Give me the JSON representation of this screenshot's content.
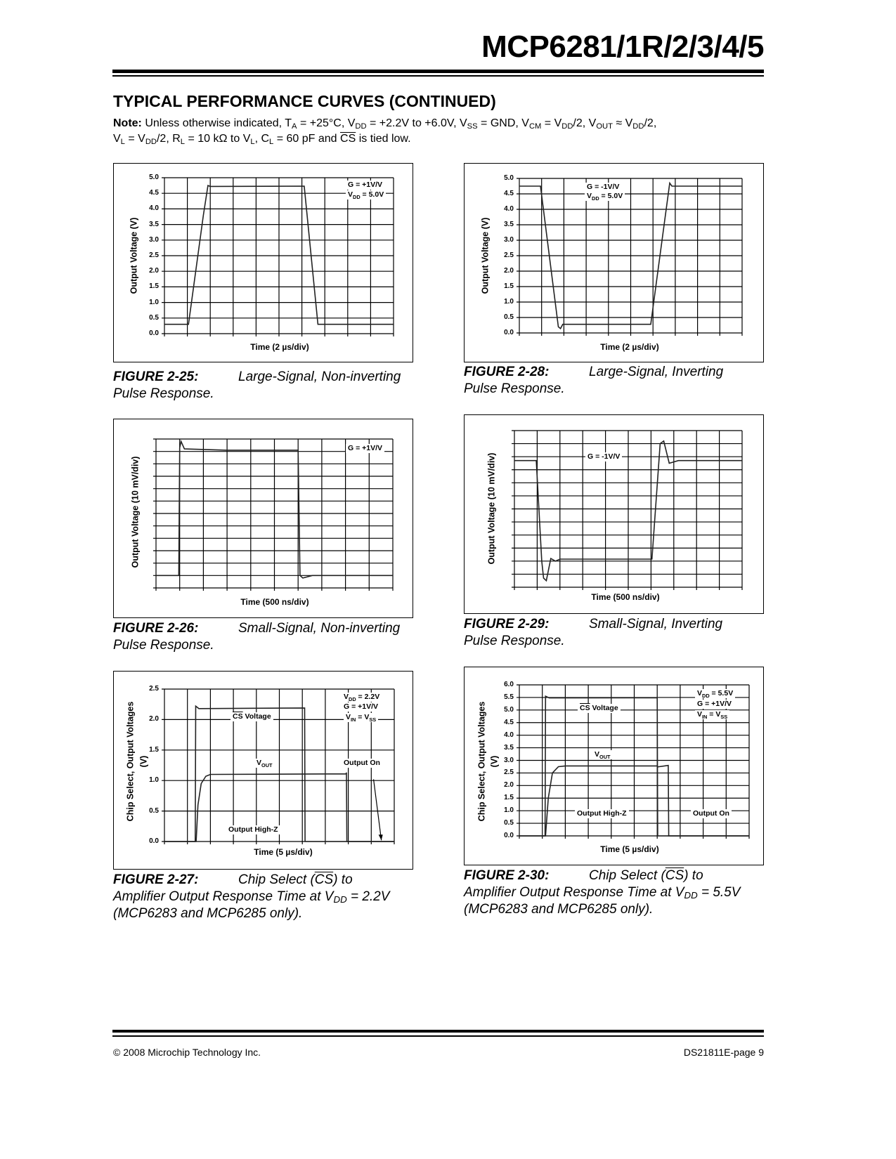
{
  "header": {
    "title": "MCP6281/1R/2/3/4/5"
  },
  "section_title": "TYPICAL PERFORMANCE CURVES (CONTINUED)",
  "note": {
    "line1": [
      {
        "b": "Note:"
      },
      {
        "t": " Unless otherwise indicated, T"
      },
      {
        "sub": "A"
      },
      {
        "t": " = +25°C, V"
      },
      {
        "sub": "DD"
      },
      {
        "t": " = +2.2V to +6.0V, V"
      },
      {
        "sub": "SS"
      },
      {
        "t": " = GND, V"
      },
      {
        "sub": "CM"
      },
      {
        "t": " = V"
      },
      {
        "sub": "DD"
      },
      {
        "t": "/2, V"
      },
      {
        "sub": "OUT"
      },
      {
        "t": " ≈ V"
      },
      {
        "sub": "DD"
      },
      {
        "t": "/2,"
      }
    ],
    "line2": [
      {
        "t": "V"
      },
      {
        "sub": "L"
      },
      {
        "t": " = V"
      },
      {
        "sub": "DD"
      },
      {
        "t": "/2, R"
      },
      {
        "sub": "L"
      },
      {
        "t": " = 10 kΩ to V"
      },
      {
        "sub": "L"
      },
      {
        "t": ", C"
      },
      {
        "sub": "L"
      },
      {
        "t": " = 60 pF and "
      },
      {
        "over": "CS"
      },
      {
        "t": " is tied low."
      }
    ]
  },
  "chart_data": [
    {
      "id": "fig-2-25",
      "type": "line",
      "xlabel": "Time (2 µs/div)",
      "ylabel": [
        "Output Voltage (V)"
      ],
      "xlim": [
        0,
        20
      ],
      "x_unit": "µs",
      "x_divisions": 10,
      "ylim": [
        0,
        5
      ],
      "y_divisions": 10,
      "yticks": [
        "0.0",
        "0.5",
        "1.0",
        "1.5",
        "2.0",
        "2.5",
        "3.0",
        "3.5",
        "4.0",
        "4.5",
        "5.0"
      ],
      "grid": true,
      "series": [
        {
          "points": [
            [
              0,
              0.3
            ],
            [
              2.1,
              0.3
            ],
            [
              3.4,
              3.8
            ],
            [
              3.8,
              4.75
            ],
            [
              4.0,
              4.72
            ],
            [
              12.2,
              4.73
            ],
            [
              13.4,
              0.3
            ],
            [
              20,
              0.3
            ]
          ]
        }
      ],
      "annotations": [
        [
          {
            "t": "G = +1V/V"
          }
        ],
        [
          {
            "t": "V"
          },
          {
            "sub": "DD"
          },
          {
            "t": " = 5.0V"
          }
        ]
      ]
    },
    {
      "id": "fig-2-28",
      "type": "line",
      "xlabel": "Time (2 µs/div)",
      "ylabel": [
        "Output Voltage (V)"
      ],
      "xlim": [
        0,
        20
      ],
      "x_unit": "µs",
      "x_divisions": 10,
      "ylim": [
        0,
        5
      ],
      "y_divisions": 10,
      "yticks": [
        "0.0",
        "0.5",
        "1.0",
        "1.5",
        "2.0",
        "2.5",
        "3.0",
        "3.5",
        "4.0",
        "4.5",
        "5.0"
      ],
      "grid": true,
      "series": [
        {
          "points": [
            [
              0,
              4.75
            ],
            [
              1.9,
              4.75
            ],
            [
              3.5,
              0.2
            ],
            [
              3.7,
              0.14
            ],
            [
              3.9,
              0.28
            ],
            [
              11.8,
              0.28
            ],
            [
              13.5,
              4.85
            ],
            [
              13.7,
              4.75
            ],
            [
              20,
              4.75
            ]
          ]
        }
      ],
      "annotations": [
        [
          {
            "t": "G = -1V/V"
          }
        ],
        [
          {
            "t": "V"
          },
          {
            "sub": "DD"
          },
          {
            "t": " = 5.0V"
          }
        ]
      ]
    },
    {
      "id": "fig-2-26",
      "type": "line",
      "xlabel": "Time (500 ns/div)",
      "ylabel": [
        "Output Voltage (10 mV/div)"
      ],
      "xlim": [
        0,
        5
      ],
      "x_unit": "µs",
      "x_divisions": 10,
      "ylim": [
        0,
        120
      ],
      "y_unit": "mV",
      "y_divisions": 12,
      "yticks": [],
      "grid": true,
      "series": [
        {
          "points": [
            [
              0,
              10
            ],
            [
              0.48,
              10
            ],
            [
              0.5,
              113
            ],
            [
              0.53,
              118
            ],
            [
              0.6,
              112
            ],
            [
              1.5,
              111
            ],
            [
              3.0,
              111
            ],
            [
              3.04,
              10
            ],
            [
              3.1,
              8
            ],
            [
              3.3,
              10
            ],
            [
              5,
              10
            ]
          ]
        }
      ],
      "annotations": [
        [
          {
            "t": "G = +1V/V"
          }
        ]
      ]
    },
    {
      "id": "fig-2-29",
      "type": "line",
      "xlabel": "Time (500 ns/div)",
      "ylabel": [
        "Output Voltage (10 mV/div)"
      ],
      "xlim": [
        0,
        5
      ],
      "x_unit": "µs",
      "x_divisions": 10,
      "ylim": [
        0,
        120
      ],
      "y_unit": "mV",
      "y_divisions": 12,
      "yticks": [],
      "grid": true,
      "series": [
        {
          "points": [
            [
              0,
              97
            ],
            [
              0.48,
              97
            ],
            [
              0.6,
              20
            ],
            [
              0.64,
              7
            ],
            [
              0.7,
              5
            ],
            [
              0.8,
              22
            ],
            [
              0.9,
              20
            ],
            [
              1.0,
              21.5
            ],
            [
              3.02,
              21.5
            ],
            [
              3.2,
              110
            ],
            [
              3.28,
              112
            ],
            [
              3.4,
              95
            ],
            [
              3.5,
              96
            ],
            [
              3.6,
              97
            ],
            [
              5,
              97
            ]
          ]
        }
      ],
      "annotations": [
        [
          {
            "t": "G = -1V/V"
          }
        ]
      ]
    },
    {
      "id": "fig-2-27",
      "type": "line",
      "xlabel": "Time (5 µs/div)",
      "ylabel": [
        "Chip Select, Output Voltages",
        "(V)"
      ],
      "xlim": [
        0,
        50
      ],
      "x_unit": "µs",
      "x_divisions": 10,
      "ylim": [
        0,
        2.5
      ],
      "y_divisions": 5,
      "yticks": [
        "0.0",
        "0.5",
        "1.0",
        "1.5",
        "2.0",
        "2.5"
      ],
      "grid": true,
      "series": [
        {
          "name": "CS Voltage",
          "points": [
            [
              0,
              0
            ],
            [
              6.7,
              0
            ],
            [
              6.8,
              2.22
            ],
            [
              7.5,
              2.18
            ],
            [
              30.5,
              2.19
            ],
            [
              30.6,
              0
            ],
            [
              50,
              0
            ]
          ]
        },
        {
          "name": "VOUT",
          "points": [
            [
              0,
              0
            ],
            [
              6.9,
              0
            ],
            [
              7.3,
              0.6
            ],
            [
              8,
              0.95
            ],
            [
              9,
              1.07
            ],
            [
              10,
              1.1
            ],
            [
              39.5,
              1.11
            ],
            [
              39.6,
              1.13
            ],
            [
              39.7,
              0
            ],
            [
              50,
              0
            ]
          ]
        }
      ],
      "arrow": {
        "from": [
          45.5,
          1.02
        ],
        "to": [
          47.2,
          0.02
        ]
      },
      "annotations": [
        [
          {
            "t": "V"
          },
          {
            "sub": "DD"
          },
          {
            "t": " = 2.2V"
          }
        ],
        [
          {
            "t": "G = +1V/V"
          }
        ],
        [
          {
            "t": "V"
          },
          {
            "sub": "IN"
          },
          {
            "t": " = V"
          },
          {
            "sub": "SS"
          }
        ],
        [
          {
            "over": "CS"
          },
          {
            "t": " Voltage"
          }
        ],
        [
          {
            "t": "V"
          },
          {
            "sub": "OUT"
          }
        ],
        [
          {
            "t": "Output On"
          }
        ],
        [
          {
            "t": "Output High-Z"
          }
        ]
      ]
    },
    {
      "id": "fig-2-30",
      "type": "line",
      "xlabel": "Time (5 µs/div)",
      "ylabel": [
        "Chip Select, Output Voltages",
        "(V)"
      ],
      "xlim": [
        0,
        50
      ],
      "x_unit": "µs",
      "x_divisions": 10,
      "ylim": [
        0,
        6
      ],
      "y_divisions": 12,
      "yticks": [
        "0.0",
        "0.5",
        "1.0",
        "1.5",
        "2.0",
        "2.5",
        "3.0",
        "3.5",
        "4.0",
        "4.5",
        "5.0",
        "5.5",
        "6.0"
      ],
      "grid": true,
      "series": [
        {
          "name": "CS Voltage",
          "points": [
            [
              0,
              0
            ],
            [
              5.6,
              0
            ],
            [
              5.7,
              5.55
            ],
            [
              6.5,
              5.48
            ],
            [
              30,
              5.49
            ],
            [
              30.1,
              0
            ],
            [
              50,
              0
            ]
          ]
        },
        {
          "name": "VOUT",
          "points": [
            [
              0,
              0
            ],
            [
              5.7,
              0
            ],
            [
              6.3,
              1.5
            ],
            [
              7.2,
              2.5
            ],
            [
              8.5,
              2.75
            ],
            [
              10,
              2.78
            ],
            [
              30,
              2.78
            ],
            [
              30.1,
              2.74
            ],
            [
              32.4,
              2.8
            ],
            [
              32.5,
              0
            ],
            [
              50,
              0
            ]
          ]
        }
      ],
      "annotations": [
        [
          {
            "t": "V"
          },
          {
            "sub": "DD"
          },
          {
            "t": " = 5.5V"
          }
        ],
        [
          {
            "t": "G = +1V/V"
          }
        ],
        [
          {
            "t": "V"
          },
          {
            "sub": "IN"
          },
          {
            "t": " = V"
          },
          {
            "sub": "SS"
          }
        ],
        [
          {
            "over": "CS"
          },
          {
            "t": " Voltage"
          }
        ],
        [
          {
            "t": "V"
          },
          {
            "sub": "OUT"
          }
        ],
        [
          {
            "t": "Output High-Z"
          }
        ],
        [
          {
            "t": "Output On"
          }
        ]
      ]
    }
  ],
  "captions": {
    "fig_2_25": {
      "label": "FIGURE 2-25:",
      "line1": [
        {
          "t": "Large-Signal, Non-inverting"
        }
      ],
      "line2": [
        {
          "t": "Pulse Response."
        }
      ]
    },
    "fig_2_28": {
      "label": "FIGURE 2-28:",
      "line1": [
        {
          "t": "Large-Signal, Inverting"
        }
      ],
      "line2": [
        {
          "t": "Pulse Response."
        }
      ]
    },
    "fig_2_26": {
      "label": "FIGURE 2-26:",
      "line1": [
        {
          "t": "Small-Signal, Non-inverting"
        }
      ],
      "line2": [
        {
          "t": "Pulse Response."
        }
      ]
    },
    "fig_2_29": {
      "label": "FIGURE 2-29:",
      "line1": [
        {
          "t": "Small-Signal, Inverting"
        }
      ],
      "line2": [
        {
          "t": "Pulse Response."
        }
      ]
    },
    "fig_2_27": {
      "label": "FIGURE 2-27:",
      "line1": [
        {
          "t": "Chip Select ("
        },
        {
          "over": "CS"
        },
        {
          "t": ") to"
        }
      ],
      "line2": [
        {
          "t": "Amplifier Output Response Time at V"
        },
        {
          "sub": "DD"
        },
        {
          "t": " = 2.2V"
        }
      ],
      "line3": [
        {
          "t": "(MCP6283 and MCP6285 only)."
        }
      ]
    },
    "fig_2_30": {
      "label": "FIGURE 2-30:",
      "line1": [
        {
          "t": "Chip Select ("
        },
        {
          "over": "CS"
        },
        {
          "t": ") to"
        }
      ],
      "line2": [
        {
          "t": "Amplifier Output Response Time at V"
        },
        {
          "sub": "DD"
        },
        {
          "t": " = 5.5V"
        }
      ],
      "line3": [
        {
          "t": "(MCP6283 and MCP6285 only)."
        }
      ]
    }
  },
  "footer": {
    "copyright": "© 2008 Microchip Technology Inc.",
    "page": "DS21811E-page 9"
  }
}
